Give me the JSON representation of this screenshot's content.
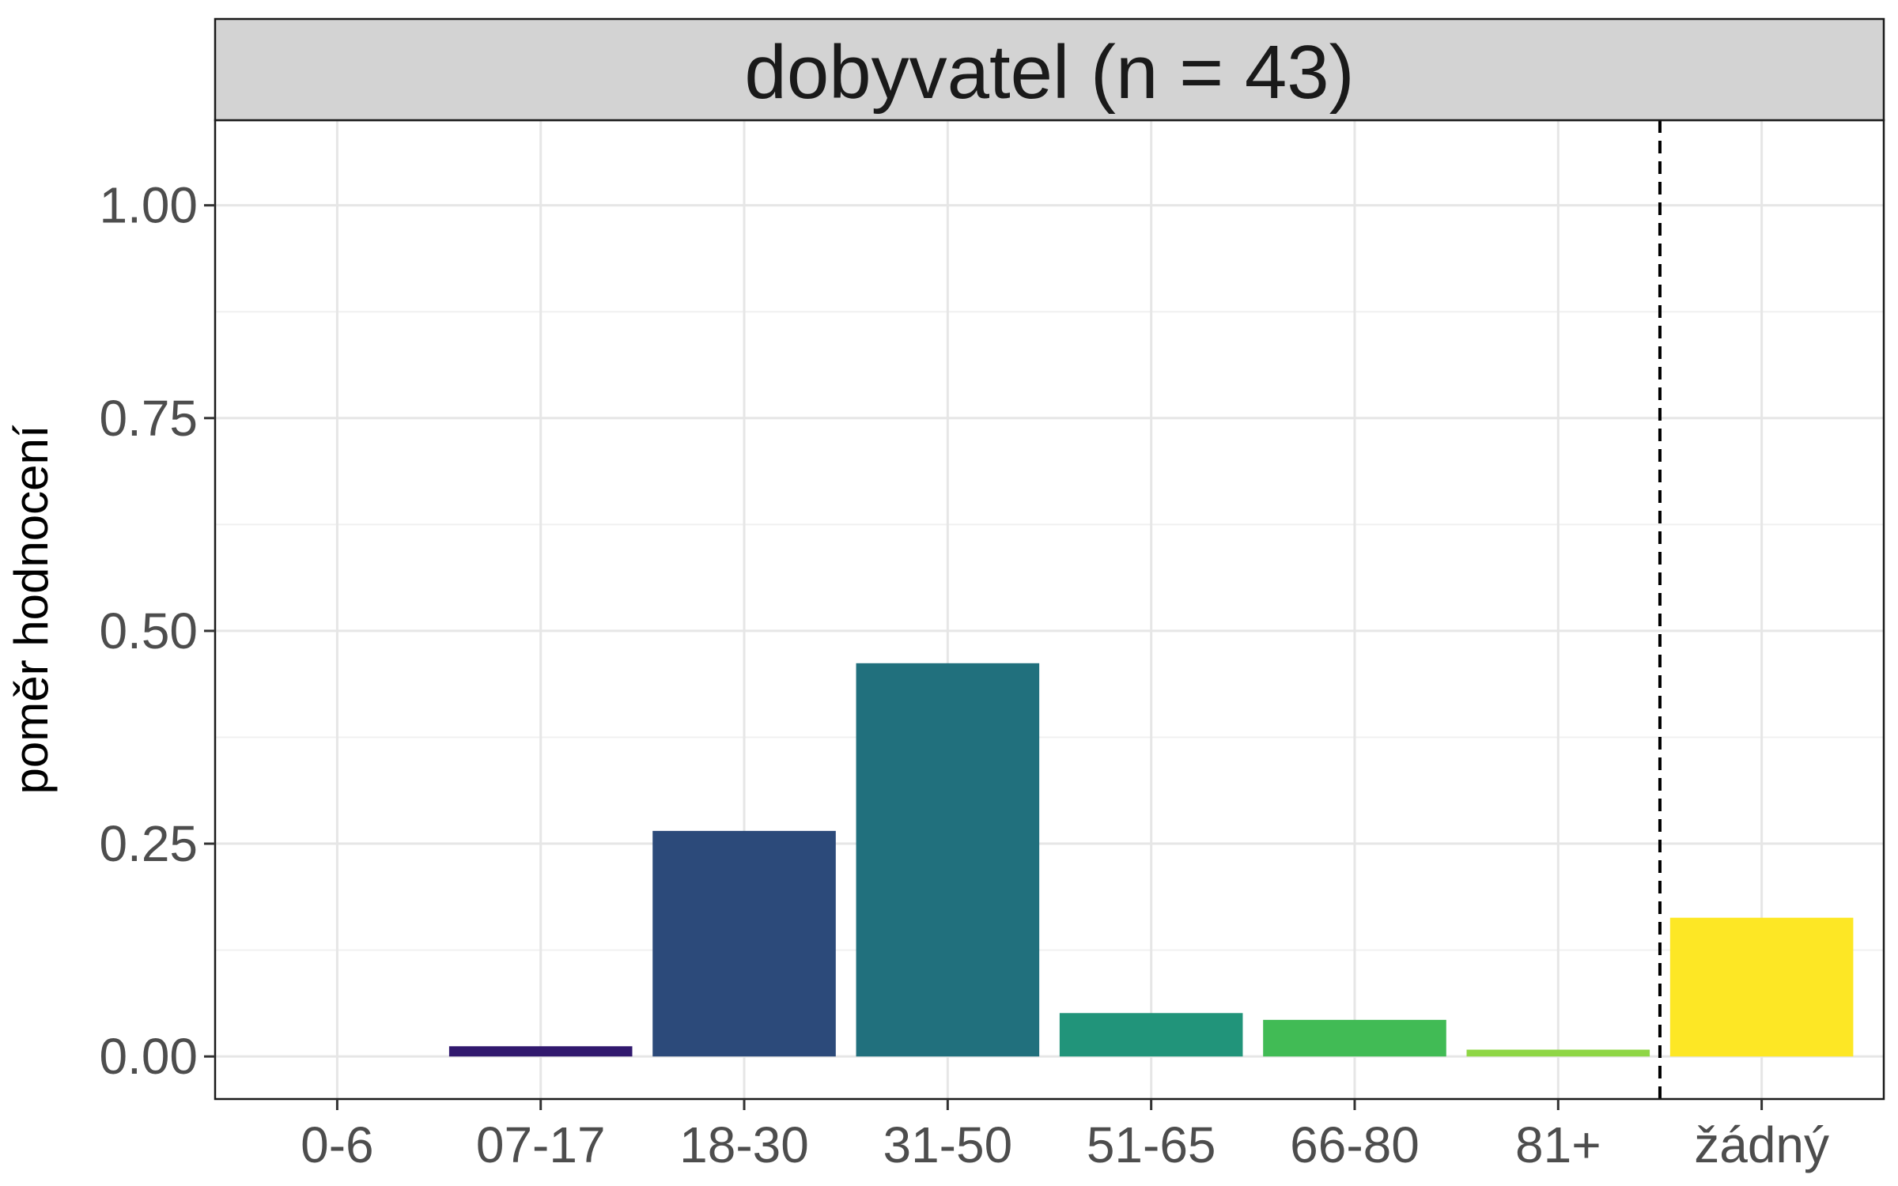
{
  "chart_data": {
    "type": "bar",
    "title": "dobyvatel (n = 43)",
    "xlabel": "",
    "ylabel": "poměr hodnocení",
    "categories": [
      "0-6",
      "07-17",
      "18-30",
      "31-50",
      "51-65",
      "66-80",
      "81+",
      "žádný"
    ],
    "values": [
      0.0,
      0.012,
      0.265,
      0.462,
      0.051,
      0.043,
      0.008,
      0.163
    ],
    "colors": [
      "#440154",
      "#31196E",
      "#2C4A7A",
      "#21707D",
      "#21947A",
      "#41BB55",
      "#8FD645",
      "#FDE725"
    ],
    "yticks": [
      0.0,
      0.25,
      0.5,
      0.75,
      1.0
    ],
    "ytick_labels": [
      "0.00",
      "0.25",
      "0.50",
      "0.75",
      "1.00"
    ],
    "ylim": [
      -0.05,
      1.1
    ],
    "grid": true,
    "reference_line": {
      "between": [
        "81+",
        "žádný"
      ],
      "style": "dashed"
    }
  }
}
